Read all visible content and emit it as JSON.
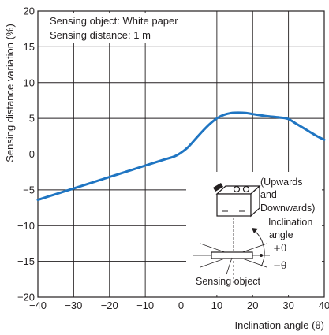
{
  "chart_data": {
    "type": "line",
    "xlabel": "Inclination angle (θ)",
    "ylabel": "Sensing distance variation (%)",
    "xlim": [
      -40,
      40
    ],
    "ylim": [
      -20,
      20
    ],
    "xticks": [
      "−40",
      "−30",
      "−20",
      "−10",
      "0",
      "10",
      "20",
      "30",
      "40"
    ],
    "yticks": [
      "20",
      "15",
      "10",
      "5",
      "0",
      "−5",
      "−10",
      "−15",
      "−20"
    ],
    "grid": true,
    "annotations": [
      "Sensing object: White paper",
      "Sensing distance: 1 m"
    ],
    "series_color": "#1f75c2",
    "series": [
      {
        "x": [
          -40,
          -35,
          -30,
          -25,
          -20,
          -15,
          -10,
          -5,
          -2,
          0,
          2,
          4,
          6,
          8,
          10,
          12,
          14,
          16,
          18,
          20,
          22,
          24,
          26,
          28,
          30,
          32,
          34,
          36,
          38,
          40
        ],
        "y": [
          -6.4,
          -5.6,
          -4.8,
          -4.0,
          -3.2,
          -2.4,
          -1.6,
          -0.8,
          -0.35,
          0.2,
          1.0,
          2.1,
          3.2,
          4.2,
          5.0,
          5.5,
          5.75,
          5.8,
          5.75,
          5.6,
          5.45,
          5.3,
          5.2,
          5.1,
          4.9,
          4.3,
          3.7,
          3.1,
          2.5,
          2.0
        ]
      }
    ]
  },
  "inset": {
    "direction_label": [
      "(Upwards",
      "and",
      "Downwards)"
    ],
    "angle_label": [
      "Inclination",
      "angle"
    ],
    "plus_theta": "+θ",
    "minus_theta": "−θ",
    "object_label": "Sensing object"
  }
}
